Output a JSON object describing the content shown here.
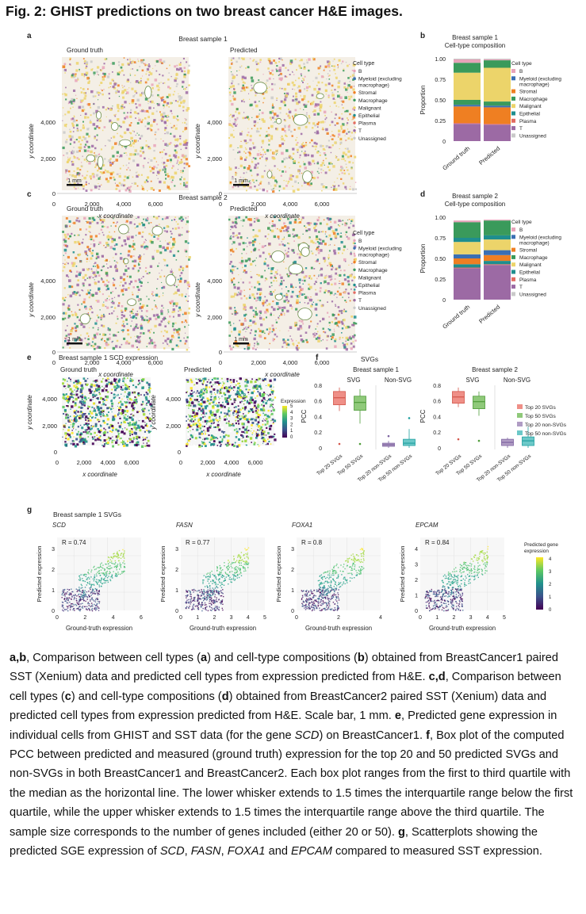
{
  "figure": {
    "title": "Fig. 2: GHIST predictions on two breast cancer H&E images.",
    "colors": {
      "B": "#e7a3b9",
      "Myeloid": "#3b6fb3",
      "Stromal": "#ef7f22",
      "Macrophage": "#3a9a5b",
      "Malignant": "#ecd46a",
      "Epithelial": "#1f8e8e",
      "Plasma": "#e26b62",
      "T": "#9c6aa4",
      "Unassigned": "#c9c9c9"
    },
    "panels": {
      "a": {
        "letter": "a",
        "sample": "Breast sample 1",
        "left": "Ground truth",
        "right": "Predicted",
        "ylabel": "y coordinate",
        "xlabel": "x coordinate",
        "yticks": [
          "0",
          "2,000",
          "4,000"
        ],
        "xticks": [
          "0",
          "2,000",
          "4,000",
          "6,000"
        ],
        "scale": "1 mm",
        "legend_title": "Cell type",
        "legend": [
          "B",
          "Myeloid (excluding",
          "macrophage)",
          "Stromal",
          "Macrophage",
          "Malignant",
          "Epithelial",
          "Plasma",
          "T",
          "Unassigned"
        ]
      },
      "b": {
        "letter": "b",
        "title1": "Breast sample 1",
        "title2": "Cell-type composition",
        "ylabel": "Proportion",
        "yticks": [
          "0",
          "0.25",
          "0.50",
          "0.75",
          "1.00"
        ],
        "xticks": [
          "Ground truth",
          "Predicted"
        ],
        "legend_title": "Cell type",
        "legend": [
          "B",
          "Myeloid (excluding",
          "macrophage)",
          "Stromal",
          "Macrophage",
          "Malignant",
          "Epithelial",
          "Plasma",
          "T",
          "Unassigned"
        ]
      },
      "c": {
        "letter": "c",
        "sample": "Breast sample 2",
        "left": "Ground truth",
        "right": "Predicted",
        "ylabel": "y coordinate",
        "xlabel": "x coordinate",
        "yticks": [
          "0",
          "2,000",
          "4,000"
        ],
        "xticks": [
          "0",
          "2,000",
          "4,000",
          "6,000"
        ],
        "scale": "1 mm",
        "legend_title": "Cell type",
        "legend": [
          "B",
          "Myeloid (excluding",
          "macrophage)",
          "Stromal",
          "Macrophage",
          "Malignant",
          "Epithelial",
          "Plasma",
          "T",
          "Unassigned"
        ]
      },
      "d": {
        "letter": "d",
        "title1": "Breast sample 2",
        "title2": "Cell-type composition",
        "ylabel": "Proportion",
        "yticks": [
          "0",
          "0.25",
          "0.50",
          "0.75",
          "1.00"
        ],
        "xticks": [
          "Ground truth",
          "Predicted"
        ],
        "legend_title": "Cell type",
        "legend": [
          "B",
          "Myeloid (excluding",
          "macrophage)",
          "Stromal",
          "Macrophage",
          "Malignant",
          "Epithelial",
          "Plasma",
          "T",
          "Unassigned"
        ]
      },
      "e": {
        "letter": "e",
        "title": "Breast sample 1 SCD expression",
        "left": "Ground truth",
        "right": "Predicted",
        "ylabel": "y coordinate",
        "xlabel": "x coordinate",
        "yticks": [
          "0",
          "2,000",
          "4,000"
        ],
        "xticks": [
          "0",
          "2,000",
          "4,000",
          "6,000"
        ],
        "cbar_title": "Expression",
        "cbar_ticks": [
          "0",
          "1",
          "2",
          "3",
          "4",
          "5"
        ]
      },
      "f": {
        "letter": "f",
        "title": "SVGs",
        "s1": "Breast sample 1",
        "s2": "Breast sample 2",
        "g1": "SVG",
        "g2": "Non-SVG",
        "ylabel": "PCC",
        "yticks": [
          "0",
          "0.2",
          "0.4",
          "0.6",
          "0.8"
        ],
        "xticks": [
          "Top 20 SVGs",
          "Top 50 SVGs",
          "Top 20 non-SVGs",
          "Top 50 non-SVGs"
        ],
        "legend": [
          "Top 20 SVGs",
          "Top 50 SVGs",
          "Top 20 non-SVGs",
          "Top 50 non-SVGs"
        ]
      },
      "g": {
        "letter": "g",
        "title": "Breast sample 1 SVGs",
        "ylabel": "Predicted expression",
        "xlabel": "Ground-truth expression",
        "cbar_title1": "Predicted gene",
        "cbar_title2": "expression",
        "cbar_ticks": [
          "0",
          "1",
          "2",
          "3",
          "4"
        ]
      }
    }
  },
  "chart_data": [
    {
      "type": "bar",
      "title": "Breast sample 1 Cell-type composition",
      "ylabel": "Proportion",
      "ylim": [
        0,
        1
      ],
      "categories": [
        "Ground truth",
        "Predicted"
      ],
      "series": [
        {
          "name": "T",
          "values": [
            0.21,
            0.2
          ]
        },
        {
          "name": "Plasma",
          "values": [
            0.01,
            0.01
          ]
        },
        {
          "name": "Epithelial",
          "values": [
            0.0,
            0.0
          ]
        },
        {
          "name": "Stromal",
          "values": [
            0.2,
            0.2
          ]
        },
        {
          "name": "Myeloid (excluding macrophage)",
          "values": [
            0.02,
            0.02
          ]
        },
        {
          "name": "Macrophage",
          "values": [
            0.06,
            0.05
          ]
        },
        {
          "name": "Malignant",
          "values": [
            0.33,
            0.41
          ]
        },
        {
          "name": "Macrophage",
          "values": [
            0.12,
            0.09
          ]
        },
        {
          "name": "B",
          "values": [
            0.04,
            0.01
          ]
        },
        {
          "name": "Unassigned",
          "values": [
            0.01,
            0.01
          ]
        }
      ]
    },
    {
      "type": "bar",
      "title": "Breast sample 2 Cell-type composition",
      "ylabel": "Proportion",
      "ylim": [
        0,
        1
      ],
      "categories": [
        "Ground truth",
        "Predicted"
      ],
      "series": [
        {
          "name": "T",
          "values": [
            0.38,
            0.42
          ]
        },
        {
          "name": "Plasma",
          "values": [
            0.01,
            0.01
          ]
        },
        {
          "name": "Epithelial",
          "values": [
            0.04,
            0.04
          ]
        },
        {
          "name": "Stromal",
          "values": [
            0.07,
            0.07
          ]
        },
        {
          "name": "Myeloid (excluding macrophage)",
          "values": [
            0.05,
            0.06
          ]
        },
        {
          "name": "Malignant",
          "values": [
            0.15,
            0.13
          ]
        },
        {
          "name": "Epithelial",
          "values": [
            0.05,
            0.05
          ]
        },
        {
          "name": "Macrophage",
          "values": [
            0.19,
            0.18
          ]
        },
        {
          "name": "B",
          "values": [
            0.02,
            0.01
          ]
        }
      ]
    },
    {
      "type": "box",
      "title": "SVGs Breast sample 1",
      "ylabel": "PCC",
      "ylim": [
        0,
        0.85
      ],
      "categories": [
        "Top 20 SVGs",
        "Top 50 SVGs",
        "Top 20 non-SVGs",
        "Top 50 non-SVGs"
      ],
      "boxes": [
        {
          "q1": 0.55,
          "median": 0.64,
          "q3": 0.72,
          "low": 0.47,
          "high": 0.77,
          "outliers": [
            0.05
          ]
        },
        {
          "q1": 0.48,
          "median": 0.58,
          "q3": 0.66,
          "low": 0.31,
          "high": 0.75,
          "outliers": [
            0.05
          ]
        },
        {
          "q1": 0.02,
          "median": 0.04,
          "q3": 0.06,
          "low": 0.0,
          "high": 0.09,
          "outliers": [
            0.15
          ]
        },
        {
          "q1": 0.03,
          "median": 0.06,
          "q3": 0.11,
          "low": 0.0,
          "high": 0.24,
          "outliers": [
            0.38
          ]
        }
      ]
    },
    {
      "type": "box",
      "title": "SVGs Breast sample 2",
      "ylabel": "PCC",
      "ylim": [
        0,
        0.85
      ],
      "categories": [
        "Top 20 SVGs",
        "Top 50 SVGs",
        "Top 20 non-SVGs",
        "Top 50 non-SVGs"
      ],
      "boxes": [
        {
          "q1": 0.57,
          "median": 0.65,
          "q3": 0.72,
          "low": 0.52,
          "high": 0.77,
          "outliers": [
            0.11
          ]
        },
        {
          "q1": 0.5,
          "median": 0.59,
          "q3": 0.66,
          "low": 0.41,
          "high": 0.72,
          "outliers": [
            0.09
          ]
        },
        {
          "q1": 0.03,
          "median": 0.07,
          "q3": 0.11,
          "low": 0.0,
          "high": 0.13,
          "outliers": []
        },
        {
          "q1": 0.03,
          "median": 0.09,
          "q3": 0.14,
          "low": 0.0,
          "high": 0.27,
          "outliers": []
        }
      ]
    },
    {
      "type": "scatter",
      "title": "SCD",
      "xlabel": "Ground-truth expression",
      "ylabel": "Predicted expression",
      "r": "R = 0.74",
      "xlim": [
        0,
        6
      ],
      "ylim": [
        0,
        4
      ],
      "xticks": [
        "0",
        "2",
        "4",
        "6"
      ],
      "yticks": [
        "0",
        "1",
        "2",
        "3"
      ]
    },
    {
      "type": "scatter",
      "title": "FASN",
      "xlabel": "Ground-truth expression",
      "ylabel": "Predicted expression",
      "r": "R = 0.77",
      "xlim": [
        0,
        5
      ],
      "ylim": [
        0,
        3.6
      ],
      "xticks": [
        "0",
        "1",
        "2",
        "3",
        "4",
        "5"
      ],
      "yticks": [
        "0",
        "1",
        "2",
        "3"
      ]
    },
    {
      "type": "scatter",
      "title": "FOXA1",
      "xlabel": "Ground-truth expression",
      "ylabel": "Predicted expression",
      "r": "R = 0.8",
      "xlim": [
        0,
        5.2
      ],
      "ylim": [
        0,
        3.6
      ],
      "xticks": [
        "0",
        "2",
        "4"
      ],
      "yticks": [
        "0",
        "1",
        "2",
        "3"
      ]
    },
    {
      "type": "scatter",
      "title": "EPCAM",
      "xlabel": "Ground-truth expression",
      "ylabel": "Predicted expression",
      "r": "R = 0.84",
      "xlim": [
        0,
        5.2
      ],
      "ylim": [
        0,
        4
      ],
      "xticks": [
        "0",
        "1",
        "2",
        "3",
        "4",
        "5"
      ],
      "yticks": [
        "0",
        "1",
        "2",
        "3",
        "4"
      ]
    }
  ],
  "caption": {
    "p1": "a",
    "p1s": ",",
    "p1b": "b",
    "p1t": ", Comparison between cell types (",
    "p2": "a",
    "p2t": ") and cell-type compositions (",
    "p3": "b",
    "p3t": ") obtained from BreastCancer1 paired SST (Xenium) data and predicted cell types from expression predicted from H&E. ",
    "p4": "c",
    "p4s": ",",
    "p4b": "d",
    "p4t": ", Comparison between cell types (",
    "p5": "c",
    "p5t": ") and cell-type compositions (",
    "p6": "d",
    "p6t": ") obtained from BreastCancer2 paired SST (Xenium) data and predicted cell types from expression predicted from H&E. Scale bar, 1 mm. ",
    "p7": "e",
    "p7t": ", Predicted gene expression in individual cells from GHIST and SST data (for the gene ",
    "p7g": "SCD",
    "p7e": ") on BreastCancer1. ",
    "p8": "f",
    "p8t": ", Box plot of the computed PCC between predicted and measured (ground truth) expression for the top 20 and 50 predicted SVGs and non-SVGs in both BreastCancer1 and BreastCancer2. Each box plot ranges from the first to third quartile with the median as the horizontal line. The lower whisker extends to 1.5 times the interquartile range below the first quartile, while the upper whisker extends to 1.5 times the interquartile range above the third quartile. The sample size corresponds to the number of genes included (either 20 or 50). ",
    "p9": "g",
    "p9t": ", Scatterplots showing the predicted SGE expression of ",
    "g1": "SCD",
    "s1": ", ",
    "g2": "FASN",
    "s2": ", ",
    "g3": "FOXA1",
    "s3": " and ",
    "g4": "EPCAM",
    "p9e": " compared to measured SST expression."
  }
}
